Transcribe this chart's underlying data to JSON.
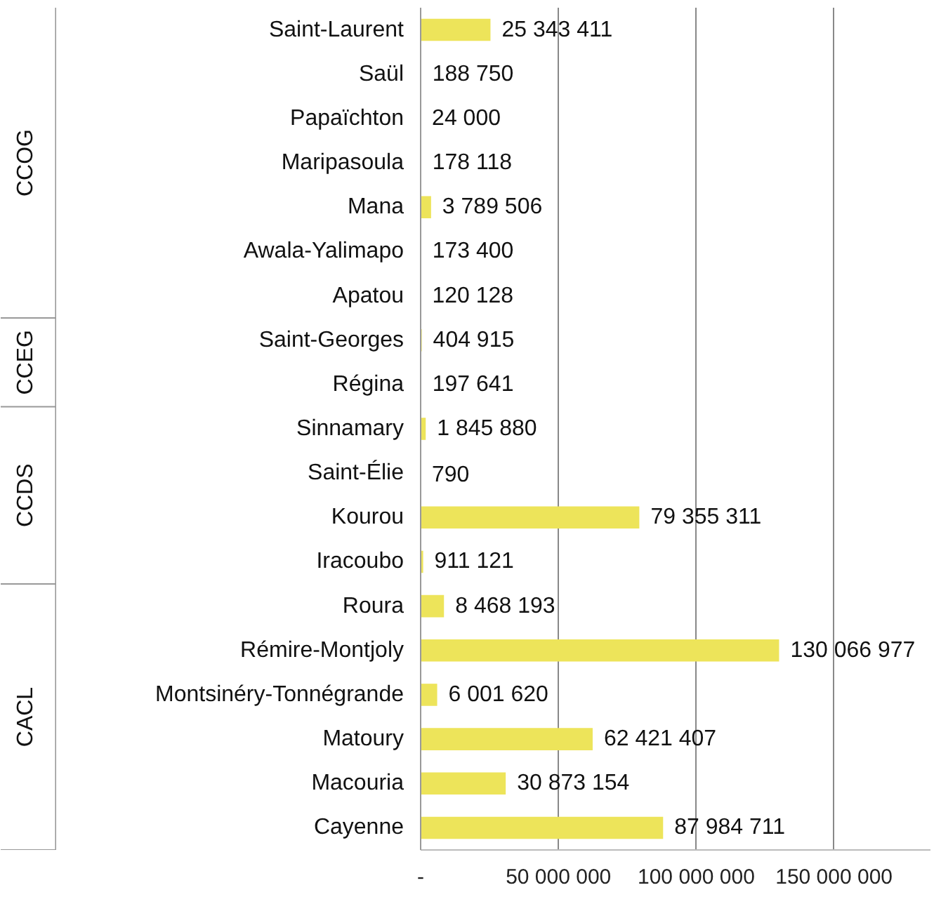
{
  "chart_data": {
    "type": "bar",
    "orientation": "horizontal",
    "categories": [
      "Saint-Laurent",
      "Saül",
      "Papaïchton",
      "Maripasoula",
      "Mana",
      "Awala-Yalimapo",
      "Apatou",
      "Saint-Georges",
      "Régina",
      "Sinnamary",
      "Saint-Élie",
      "Kourou",
      "Iracoubo",
      "Roura",
      "Rémire-Montjoly",
      "Montsinéry-Tonnégrande",
      "Matoury",
      "Macouria",
      "Cayenne"
    ],
    "values": [
      25343411,
      188750,
      24000,
      178118,
      3789506,
      173400,
      120128,
      404915,
      197641,
      1845880,
      790,
      79355311,
      911121,
      8468193,
      130066977,
      6001620,
      62421407,
      30873154,
      87984711
    ],
    "value_labels": [
      "25 343 411",
      "188 750",
      "24 000",
      "178 118",
      "3 789 506",
      "173 400",
      "120 128",
      "404 915",
      "197 641",
      "1 845 880",
      "790",
      "79 355 311",
      "911 121",
      "8 468 193",
      "130 066 977",
      "6 001 620",
      "62 421 407",
      "30 873 154",
      "87 984 711"
    ],
    "color": "#ede45a",
    "xlim": [
      0,
      185000000
    ],
    "xticks": [
      {
        "value": 0,
        "label": "-"
      },
      {
        "value": 50000000,
        "label": "50 000 000"
      },
      {
        "value": 100000000,
        "label": "100 000 000"
      },
      {
        "value": 150000000,
        "label": "150 000 000"
      }
    ],
    "grid": "x",
    "annotations": [
      "CCOG",
      "CCEG",
      "CCDS",
      "CACL"
    ]
  }
}
